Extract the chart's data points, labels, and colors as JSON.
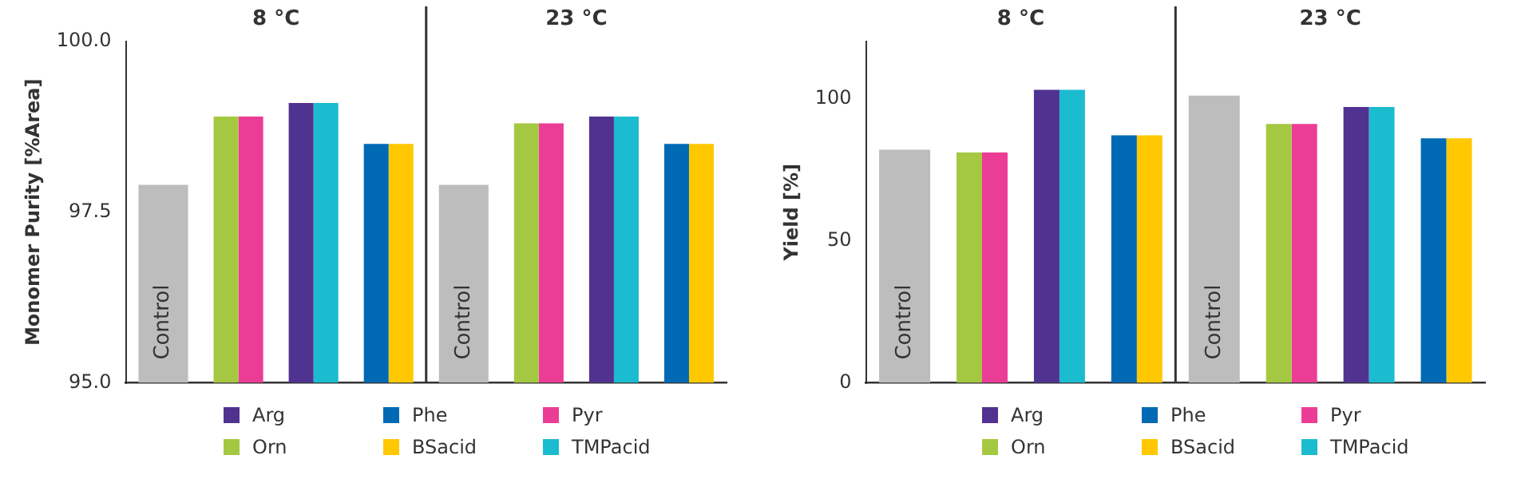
{
  "chart_data": [
    {
      "type": "bar",
      "ylabel": "Monomer Purity [%Area]",
      "categories": [
        "Control",
        null,
        null,
        null,
        "Control",
        null,
        null,
        null
      ],
      "series": [
        {
          "name": "Arg",
          "color": "#503291",
          "values": [
            null,
            null,
            99.1,
            null,
            null,
            null,
            98.9,
            null
          ]
        },
        {
          "name": "Orn",
          "color": "#a5c842",
          "values": [
            null,
            98.9,
            null,
            null,
            null,
            98.8,
            null,
            null
          ]
        },
        {
          "name": "Phe",
          "color": "#0069b4",
          "values": [
            null,
            null,
            null,
            98.5,
            null,
            null,
            null,
            98.5
          ]
        },
        {
          "name": "BSacid",
          "color": "#ffc800",
          "values": [
            null,
            null,
            null,
            98.5,
            null,
            null,
            null,
            98.5
          ]
        },
        {
          "name": "Pyr",
          "color": "#eb3c96",
          "values": [
            null,
            98.9,
            null,
            null,
            null,
            98.8,
            null,
            null
          ]
        },
        {
          "name": "TMPacid",
          "color": "#1bbccf",
          "values": [
            null,
            null,
            99.1,
            null,
            null,
            null,
            98.9,
            null
          ]
        },
        {
          "color": "#bdbdbe",
          "values": [
            97.9,
            null,
            null,
            null,
            97.9,
            null,
            null,
            null
          ]
        }
      ],
      "ylim": [
        95,
        100
      ],
      "yticks": [
        {
          "value": 95,
          "label": "95.0"
        },
        {
          "value": 97.5,
          "label": "97.5"
        },
        {
          "value": 100,
          "label": "100.0"
        }
      ],
      "annotations": [
        "8 °C",
        "23 °C"
      ],
      "grid": false,
      "legend": "bottom"
    },
    {
      "type": "bar",
      "ylabel": "Yield [%]",
      "categories": [
        "Control",
        null,
        null,
        null,
        "Control",
        null,
        null,
        null
      ],
      "series": [
        {
          "name": "Arg",
          "color": "#503291",
          "values": [
            null,
            null,
            103,
            null,
            null,
            null,
            97,
            null
          ]
        },
        {
          "name": "Orn",
          "color": "#a5c842",
          "values": [
            null,
            81,
            null,
            null,
            null,
            91,
            null,
            null
          ]
        },
        {
          "name": "Phe",
          "color": "#0069b4",
          "values": [
            null,
            null,
            null,
            87,
            null,
            null,
            null,
            86
          ]
        },
        {
          "name": "BSacid",
          "color": "#ffc800",
          "values": [
            null,
            null,
            null,
            87,
            null,
            null,
            null,
            86
          ]
        },
        {
          "name": "Pyr",
          "color": "#eb3c96",
          "values": [
            null,
            81,
            null,
            null,
            null,
            91,
            null,
            null
          ]
        },
        {
          "name": "TMPacid",
          "color": "#1bbccf",
          "values": [
            null,
            null,
            103,
            null,
            null,
            null,
            97,
            null
          ]
        },
        {
          "color": "#bdbdbe",
          "values": [
            82,
            null,
            null,
            null,
            101,
            null,
            null,
            null
          ]
        }
      ],
      "ylim": [
        0,
        120
      ],
      "yticks": [
        0,
        50,
        100
      ],
      "annotations": [
        "8 °C",
        "23 °C"
      ],
      "grid": false,
      "legend": "bottom"
    }
  ]
}
